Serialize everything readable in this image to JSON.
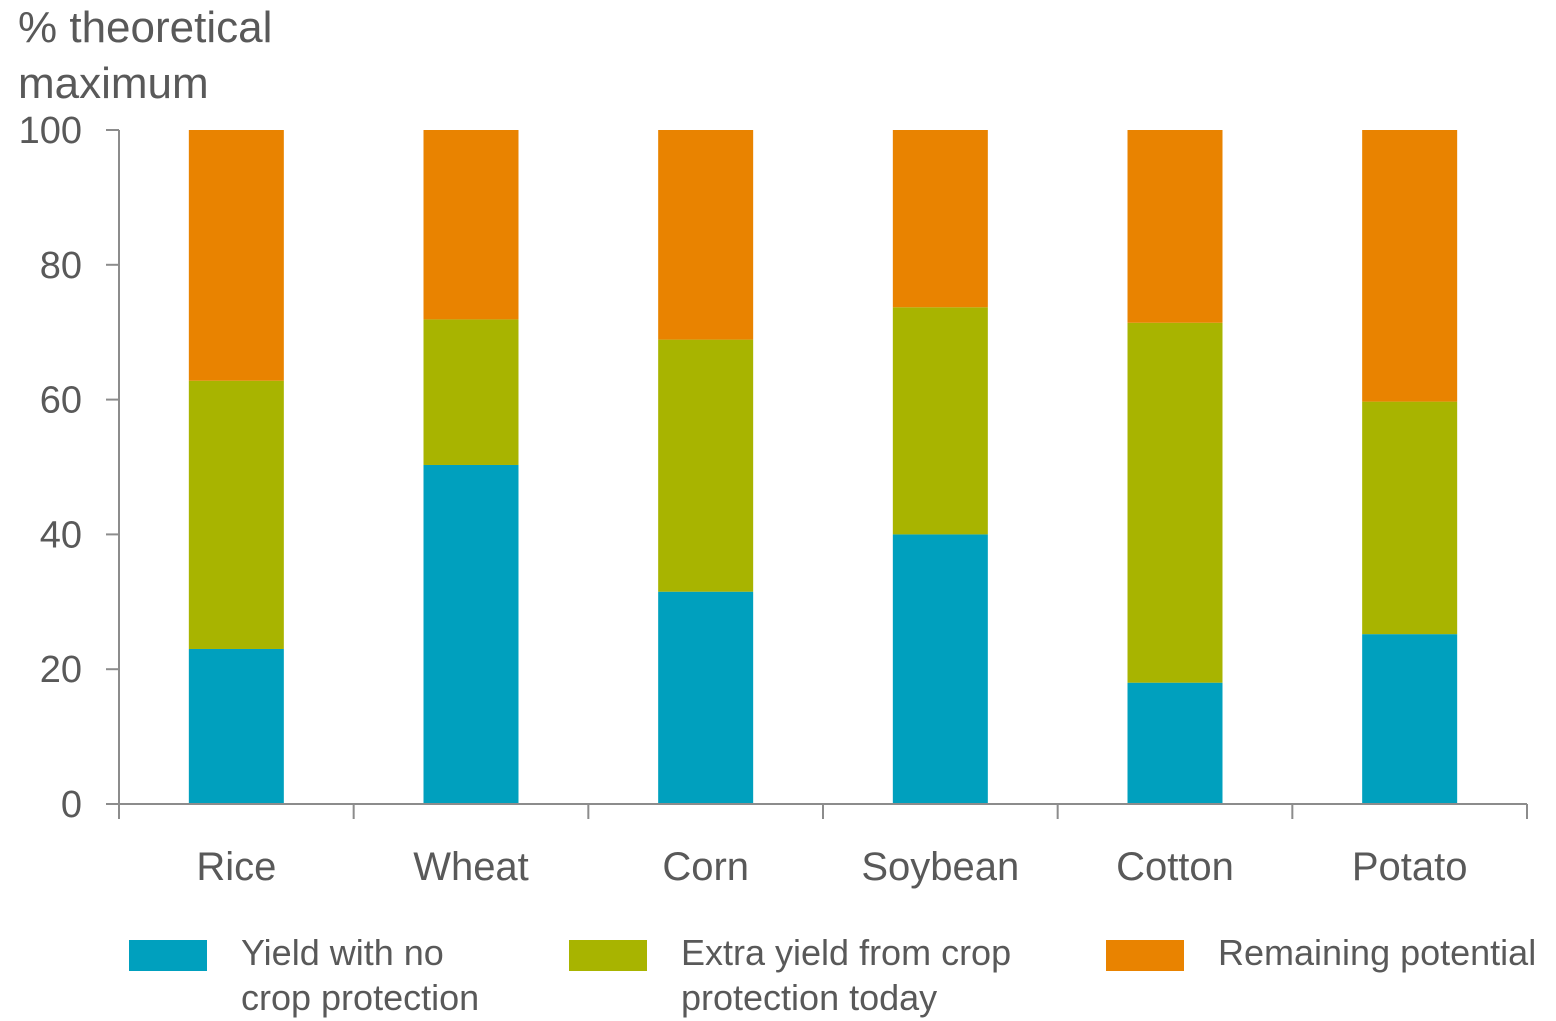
{
  "chart_data": {
    "type": "bar",
    "stacked": true,
    "ylabel": [
      "% theoretical",
      "maximum"
    ],
    "ylim": [
      0,
      100
    ],
    "yticks": [
      0,
      20,
      40,
      60,
      80,
      100
    ],
    "categories": [
      "Rice",
      "Wheat",
      "Corn",
      "Soybean",
      "Cotton",
      "Potato"
    ],
    "series": [
      {
        "name": [
          "Yield with no",
          "crop protection"
        ],
        "color": "#00A0BE",
        "values": [
          23,
          50.3,
          31.5,
          40,
          18,
          25.2
        ]
      },
      {
        "name": [
          "Extra yield from crop",
          "protection today"
        ],
        "color": "#A8B400",
        "values": [
          39.8,
          21.6,
          37.4,
          33.7,
          53.4,
          34.5
        ]
      },
      {
        "name": [
          "Remaining potential"
        ],
        "color": "#E98300",
        "values": [
          37.2,
          28.1,
          31.1,
          26.3,
          28.6,
          40.3
        ]
      }
    ],
    "grid": false,
    "legend": "bottom"
  }
}
